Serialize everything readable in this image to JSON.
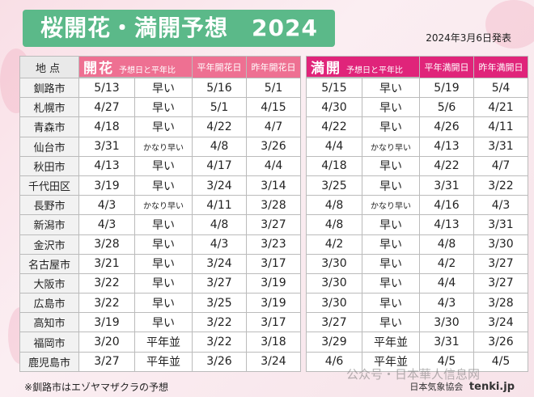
{
  "title": "桜開花・満開予想　2024",
  "announce_date": "2024年3月6日発表",
  "header": {
    "city_col": "地点",
    "bloom": {
      "title": "開花",
      "sub": "予想日と平年比",
      "avg_label": "平年開花日",
      "last_label": "昨年開花日"
    },
    "full": {
      "title": "満開",
      "sub": "予想日と平年比",
      "avg_label": "平年満開日",
      "last_label": "昨年満開日"
    }
  },
  "rows": [
    {
      "city": "釧路市",
      "b_date": "5/13",
      "b_cmp": "早い",
      "b_avg": "5/16",
      "b_last": "5/1",
      "f_date": "5/15",
      "f_cmp": "早い",
      "f_avg": "5/19",
      "f_last": "5/4"
    },
    {
      "city": "札幌市",
      "b_date": "4/27",
      "b_cmp": "早い",
      "b_avg": "5/1",
      "b_last": "4/15",
      "f_date": "4/30",
      "f_cmp": "早い",
      "f_avg": "5/6",
      "f_last": "4/21"
    },
    {
      "city": "青森市",
      "b_date": "4/18",
      "b_cmp": "早い",
      "b_avg": "4/22",
      "b_last": "4/7",
      "f_date": "4/22",
      "f_cmp": "早い",
      "f_avg": "4/26",
      "f_last": "4/11"
    },
    {
      "city": "仙台市",
      "b_date": "3/31",
      "b_cmp": "かなり早い",
      "b_avg": "4/8",
      "b_last": "3/26",
      "f_date": "4/4",
      "f_cmp": "かなり早い",
      "f_avg": "4/13",
      "f_last": "3/31"
    },
    {
      "city": "秋田市",
      "b_date": "4/13",
      "b_cmp": "早い",
      "b_avg": "4/17",
      "b_last": "4/4",
      "f_date": "4/18",
      "f_cmp": "早い",
      "f_avg": "4/22",
      "f_last": "4/7"
    },
    {
      "city": "千代田区",
      "b_date": "3/19",
      "b_cmp": "早い",
      "b_avg": "3/24",
      "b_last": "3/14",
      "f_date": "3/25",
      "f_cmp": "早い",
      "f_avg": "3/31",
      "f_last": "3/22"
    },
    {
      "city": "長野市",
      "b_date": "4/3",
      "b_cmp": "かなり早い",
      "b_avg": "4/11",
      "b_last": "3/28",
      "f_date": "4/8",
      "f_cmp": "かなり早い",
      "f_avg": "4/16",
      "f_last": "4/3"
    },
    {
      "city": "新潟市",
      "b_date": "4/3",
      "b_cmp": "早い",
      "b_avg": "4/8",
      "b_last": "3/27",
      "f_date": "4/8",
      "f_cmp": "早い",
      "f_avg": "4/13",
      "f_last": "3/31"
    },
    {
      "city": "金沢市",
      "b_date": "3/28",
      "b_cmp": "早い",
      "b_avg": "4/3",
      "b_last": "3/23",
      "f_date": "4/2",
      "f_cmp": "早い",
      "f_avg": "4/8",
      "f_last": "3/30"
    },
    {
      "city": "名古屋市",
      "b_date": "3/21",
      "b_cmp": "早い",
      "b_avg": "3/24",
      "b_last": "3/17",
      "f_date": "3/30",
      "f_cmp": "早い",
      "f_avg": "4/2",
      "f_last": "3/27"
    },
    {
      "city": "大阪市",
      "b_date": "3/22",
      "b_cmp": "早い",
      "b_avg": "3/27",
      "b_last": "3/19",
      "f_date": "3/30",
      "f_cmp": "早い",
      "f_avg": "4/4",
      "f_last": "3/27"
    },
    {
      "city": "広島市",
      "b_date": "3/22",
      "b_cmp": "早い",
      "b_avg": "3/25",
      "b_last": "3/19",
      "f_date": "3/30",
      "f_cmp": "早い",
      "f_avg": "4/3",
      "f_last": "3/28"
    },
    {
      "city": "高知市",
      "b_date": "3/19",
      "b_cmp": "早い",
      "b_avg": "3/22",
      "b_last": "3/17",
      "f_date": "3/27",
      "f_cmp": "早い",
      "f_avg": "3/30",
      "f_last": "3/24"
    },
    {
      "city": "福岡市",
      "b_date": "3/20",
      "b_cmp": "平年並",
      "b_avg": "3/22",
      "b_last": "3/18",
      "f_date": "3/29",
      "f_cmp": "平年並",
      "f_avg": "3/31",
      "f_last": "3/26"
    },
    {
      "city": "鹿児島市",
      "b_date": "3/27",
      "b_cmp": "平年並",
      "b_avg": "3/26",
      "b_last": "3/24",
      "f_date": "4/6",
      "f_cmp": "平年並",
      "f_avg": "4/5",
      "f_last": "4/5"
    }
  ],
  "footnote": "※釧路市はエゾヤマザクラの予想",
  "source_org": "日本気象協会",
  "source_site": "tenki.jp",
  "watermark": "公众号・日本華人信息网",
  "colors": {
    "title_green": "#5bb989",
    "bloom_pink": "#ee7092",
    "full_magenta": "#e0247a"
  }
}
